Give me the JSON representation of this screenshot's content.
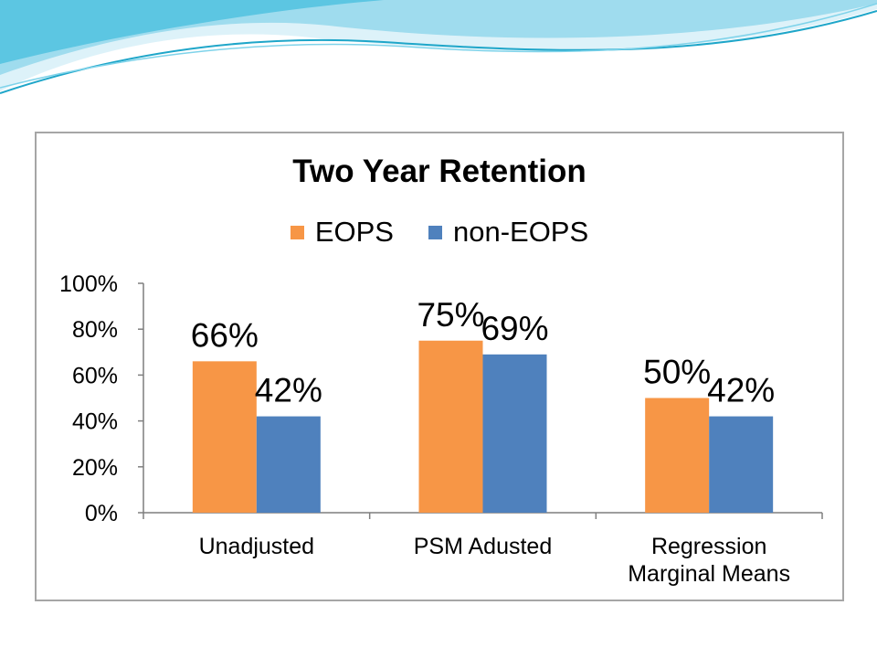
{
  "colors": {
    "eops": "#F79646",
    "non_eops": "#4F81BD",
    "axis": "#7f7f7f",
    "swoosh_light": "#c9ecf5",
    "swoosh_mid": "#7fd3ea",
    "swoosh_dark": "#1fa6c9"
  },
  "chart_data": {
    "type": "bar",
    "title": "Two Year Retention",
    "categories": [
      [
        "Unadjusted"
      ],
      [
        "PSM Adusted"
      ],
      [
        "Regression",
        "Marginal Means"
      ]
    ],
    "series": [
      {
        "name": "EOPS",
        "values": [
          66,
          75,
          50
        ],
        "labels": [
          "66%",
          "75%",
          "50%"
        ]
      },
      {
        "name": "non-EOPS",
        "values": [
          42,
          69,
          42
        ],
        "labels": [
          "42%",
          "69%",
          "42%"
        ]
      }
    ],
    "ylim": [
      0,
      100
    ],
    "yticks": [
      0,
      20,
      40,
      60,
      80,
      100
    ],
    "ytick_labels": [
      "0%",
      "20%",
      "40%",
      "60%",
      "80%",
      "100%"
    ],
    "xlabel": "",
    "ylabel": "",
    "grid": false,
    "legend_position": "top"
  }
}
